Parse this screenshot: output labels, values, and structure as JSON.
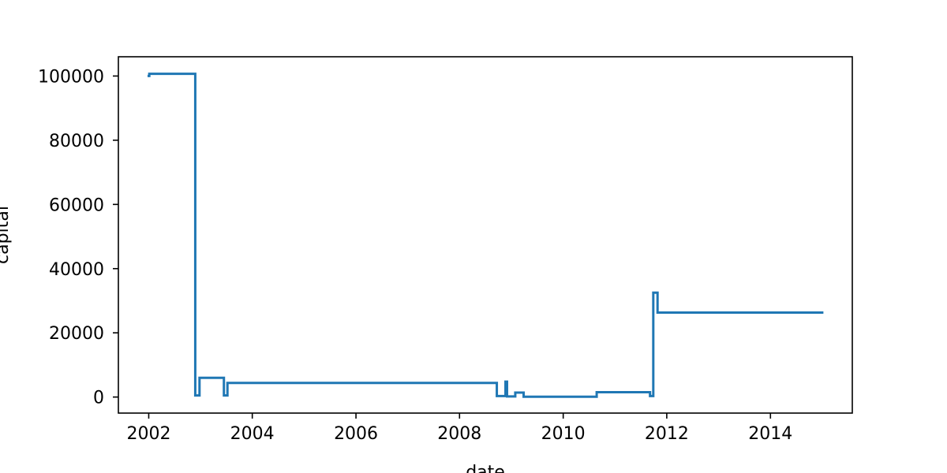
{
  "chart_data": {
    "type": "line",
    "title": "",
    "xlabel": "date",
    "ylabel": "capital",
    "xlim": [
      "2001-06-01",
      "2015-08-01"
    ],
    "ylim": [
      -5000,
      106000
    ],
    "xticks": [
      {
        "value": "2002-01-01",
        "label": "2002"
      },
      {
        "value": "2004-01-01",
        "label": "2004"
      },
      {
        "value": "2006-01-01",
        "label": "2006"
      },
      {
        "value": "2008-01-01",
        "label": "2008"
      },
      {
        "value": "2010-01-01",
        "label": "2010"
      },
      {
        "value": "2012-01-01",
        "label": "2012"
      },
      {
        "value": "2014-01-01",
        "label": "2014"
      }
    ],
    "yticks": [
      {
        "value": 0,
        "label": "0"
      },
      {
        "value": 20000,
        "label": "20000"
      },
      {
        "value": 40000,
        "label": "40000"
      },
      {
        "value": 60000,
        "label": "60000"
      },
      {
        "value": 80000,
        "label": "80000"
      },
      {
        "value": 100000,
        "label": "100000"
      }
    ],
    "grid": false,
    "step": true,
    "color": "#1f77b4",
    "series": [
      {
        "points": [
          [
            "2002-01-01",
            100000
          ],
          [
            "2002-01-05",
            100700
          ],
          [
            "2002-11-20",
            100700
          ],
          [
            "2002-11-25",
            500
          ],
          [
            "2002-12-20",
            500
          ],
          [
            "2002-12-25",
            6000
          ],
          [
            "2003-06-10",
            6000
          ],
          [
            "2003-06-15",
            500
          ],
          [
            "2003-07-05",
            500
          ],
          [
            "2003-07-10",
            4400
          ],
          [
            "2008-09-15",
            4400
          ],
          [
            "2008-09-20",
            300
          ],
          [
            "2008-11-15",
            300
          ],
          [
            "2008-11-20",
            4800
          ],
          [
            "2008-11-28",
            4800
          ],
          [
            "2008-12-01",
            200
          ],
          [
            "2009-01-25",
            200
          ],
          [
            "2009-01-28",
            1400
          ],
          [
            "2009-03-25",
            1400
          ],
          [
            "2009-03-28",
            100
          ],
          [
            "2010-08-20",
            100
          ],
          [
            "2010-08-25",
            1500
          ],
          [
            "2011-09-01",
            1500
          ],
          [
            "2011-09-05",
            300
          ],
          [
            "2011-09-25",
            300
          ],
          [
            "2011-09-28",
            32500
          ],
          [
            "2011-10-25",
            32500
          ],
          [
            "2011-10-28",
            26300
          ],
          [
            "2015-01-01",
            26300
          ]
        ]
      }
    ]
  }
}
